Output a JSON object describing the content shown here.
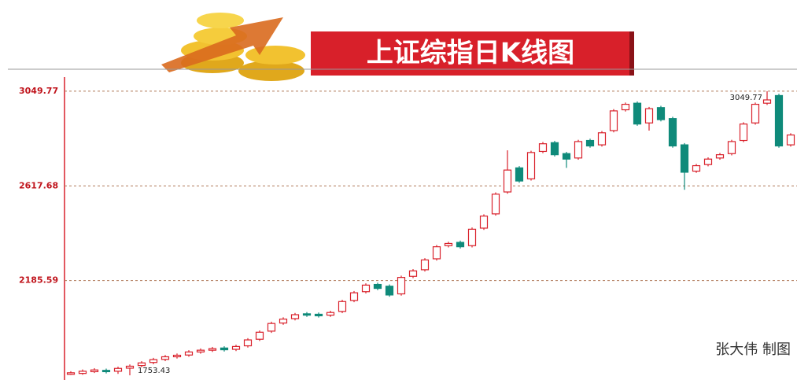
{
  "chart_data": {
    "type": "candlestick",
    "title": "上证综指日K线图",
    "ylim": [
      1750,
      3150
    ],
    "yticks": [
      2185.59,
      2617.68,
      3049.77
    ],
    "grid": true,
    "up_color": "#d9212b",
    "down_color": "#0f8a7a",
    "annotations": [
      "3049.77",
      "1753.43"
    ],
    "credit": "张大伟 制图",
    "open": [
      1758,
      1762,
      1770,
      1776,
      1772,
      1786,
      1798,
      1812,
      1826,
      1838,
      1846,
      1860,
      1868,
      1878,
      1872,
      1888,
      1918,
      1955,
      1992,
      2012,
      2034,
      2032,
      2028,
      2045,
      2095,
      2135,
      2168,
      2160,
      2125,
      2205,
      2235,
      2285,
      2345,
      2360,
      2345,
      2425,
      2490,
      2590,
      2700,
      2650,
      2775,
      2815,
      2765,
      2745,
      2825,
      2805,
      2870,
      2965,
      2995,
      2905,
      2975,
      2925,
      2805,
      2685,
      2715,
      2745,
      2765,
      2825,
      2905,
      2995,
      3030,
      2805
    ],
    "high": [
      1772,
      1780,
      1786,
      1784,
      1793,
      1803,
      1818,
      1833,
      1846,
      1853,
      1868,
      1876,
      1883,
      1886,
      1893,
      1923,
      1958,
      1998,
      2018,
      2038,
      2042,
      2040,
      2048,
      2098,
      2138,
      2173,
      2176,
      2168,
      2208,
      2238,
      2288,
      2348,
      2363,
      2368,
      2428,
      2488,
      2588,
      2780,
      2708,
      2778,
      2818,
      2823,
      2773,
      2828,
      2833,
      2868,
      2968,
      2998,
      3003,
      2978,
      2983,
      2933,
      2813,
      2718,
      2748,
      2768,
      2828,
      2908,
      2998,
      3049.77,
      3038,
      2858
    ],
    "low": [
      1755,
      1756,
      1764,
      1762,
      1760,
      1753.43,
      1790,
      1804,
      1818,
      1830,
      1838,
      1852,
      1860,
      1862,
      1864,
      1880,
      1910,
      1947,
      1984,
      2004,
      2020,
      2017,
      2020,
      2037,
      2087,
      2127,
      2142,
      2112,
      2117,
      2197,
      2227,
      2277,
      2337,
      2332,
      2337,
      2417,
      2482,
      2582,
      2632,
      2642,
      2767,
      2752,
      2700,
      2737,
      2792,
      2797,
      2862,
      2957,
      2892,
      2870,
      2912,
      2792,
      2600,
      2677,
      2707,
      2737,
      2757,
      2817,
      2897,
      2987,
      2792,
      2797
    ],
    "close": [
      1765,
      1772,
      1778,
      1770,
      1785,
      1795,
      1810,
      1825,
      1838,
      1845,
      1860,
      1868,
      1875,
      1870,
      1885,
      1915,
      1950,
      1990,
      2010,
      2030,
      2028,
      2025,
      2040,
      2090,
      2130,
      2165,
      2150,
      2120,
      2200,
      2230,
      2280,
      2340,
      2355,
      2340,
      2420,
      2480,
      2580,
      2690,
      2640,
      2770,
      2810,
      2760,
      2740,
      2820,
      2800,
      2860,
      2960,
      2990,
      2900,
      2970,
      2920,
      2800,
      2680,
      2710,
      2740,
      2760,
      2820,
      2900,
      2990,
      3010,
      2800,
      2850
    ]
  }
}
